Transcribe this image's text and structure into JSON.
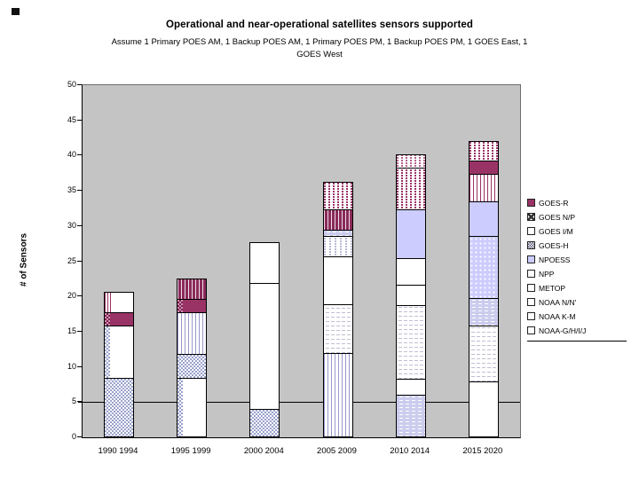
{
  "title": "Operational and near-operational satellites sensors supported",
  "subtitle_lines": [
    "Assume 1 Primary POES AM, 1 Backup POES AM, 1 Primary POES PM, 1 Backup POES PM, 1 GOES East, 1",
    "GOES West"
  ],
  "y_axis": {
    "label": "# of Sensors",
    "min": 0,
    "max": 50,
    "tick_step": 5,
    "ticks": [
      0,
      5,
      10,
      15,
      20,
      25,
      30,
      35,
      40,
      45,
      50
    ]
  },
  "legend": [
    {
      "label": "GOES-R",
      "marker": "maroon"
    },
    {
      "label": "GOES N/P",
      "marker": "xhatch"
    },
    {
      "label": "GOES I/M",
      "marker": "white"
    },
    {
      "label": "GOES-H",
      "marker": "checker"
    },
    {
      "label": "NPOESS",
      "marker": "purple"
    },
    {
      "label": "NPP",
      "marker": "white"
    },
    {
      "label": "METOP",
      "marker": "white"
    },
    {
      "label": "NOAA N/N'",
      "marker": "white"
    },
    {
      "label": "NOAA K-M",
      "marker": "white"
    },
    {
      "label": "NOAA-G/H/I/J",
      "marker": "white"
    }
  ],
  "chart_data": {
    "type": "bar",
    "stacked": true,
    "title": "Operational and near-operational satellites sensors supported",
    "xlabel": "",
    "ylabel": "# of Sensors",
    "ylim": [
      0,
      50
    ],
    "ytick_step": 5,
    "gridlines": [
      5
    ],
    "grid": "single horizontal line at y=5",
    "legend_position": "right",
    "plot_background": "#c4c4c4",
    "accent_colors": {
      "plum": "#993366",
      "periwinkle": "#ccccff",
      "pattern_blue": "#9aa2cc"
    },
    "categories": [
      "1990 1994",
      "1995 1999",
      "2000 2004",
      "2005 2009",
      "2010 2014",
      "2015 2020"
    ],
    "totals": [
      21,
      23,
      28,
      37,
      41,
      43
    ],
    "bars": [
      {
        "category": "1990 1994",
        "total": 21,
        "segments": [
          {
            "value": 8.5,
            "pattern": "checker"
          },
          {
            "value": 7.5,
            "pattern": "white-edge-checker"
          },
          {
            "value": 2,
            "pattern": "maroon-edge-checker"
          },
          {
            "value": 3,
            "pattern": "white-edge-maroonstripes"
          }
        ]
      },
      {
        "category": "1995 1999",
        "total": 23,
        "segments": [
          {
            "value": 8.5,
            "pattern": "white-edge-checker"
          },
          {
            "value": 3.5,
            "pattern": "checker"
          },
          {
            "value": 6,
            "pattern": "stripes-light"
          },
          {
            "value": 2,
            "pattern": "maroon-edge-checker"
          },
          {
            "value": 3,
            "pattern": "maroon-stripes-dense"
          }
        ]
      },
      {
        "category": "2000 2004",
        "total": 28,
        "segments": [
          {
            "value": 4,
            "pattern": "checker"
          },
          {
            "value": 18,
            "pattern": "white"
          },
          {
            "value": 6,
            "pattern": "white"
          }
        ]
      },
      {
        "category": "2005 2009",
        "total": 37,
        "segments": [
          {
            "value": 12,
            "pattern": "stripes-light"
          },
          {
            "value": 7,
            "pattern": "dash-sparse"
          },
          {
            "value": 7,
            "pattern": "white"
          },
          {
            "value": 3,
            "pattern": "dot-light"
          },
          {
            "value": 1,
            "pattern": "brick"
          },
          {
            "value": 3,
            "pattern": "maroon-stripes-dense"
          },
          {
            "value": 4,
            "pattern": "dot-maroon"
          }
        ]
      },
      {
        "category": "2010 2014",
        "total": 41,
        "segments": [
          {
            "value": 6,
            "pattern": "brick"
          },
          {
            "value": 2.5,
            "pattern": "white"
          },
          {
            "value": 10.5,
            "pattern": "dash-sparse"
          },
          {
            "value": 3,
            "pattern": "white"
          },
          {
            "value": 4,
            "pattern": "white"
          },
          {
            "value": 7,
            "pattern": "purple"
          },
          {
            "value": 6,
            "pattern": "dot-maroon"
          },
          {
            "value": 2,
            "pattern": "dot-maroon-light"
          }
        ]
      },
      {
        "category": "2015 2020",
        "total": 43,
        "segments": [
          {
            "value": 8,
            "pattern": "white"
          },
          {
            "value": 8,
            "pattern": "dash-sparse"
          },
          {
            "value": 4,
            "pattern": "brick"
          },
          {
            "value": 9,
            "pattern": "dot-purple"
          },
          {
            "value": 5,
            "pattern": "purple"
          },
          {
            "value": 4,
            "pattern": "stripes-maroon"
          },
          {
            "value": 2,
            "pattern": "maroon"
          },
          {
            "value": 3,
            "pattern": "dot-maroon"
          }
        ]
      }
    ]
  }
}
